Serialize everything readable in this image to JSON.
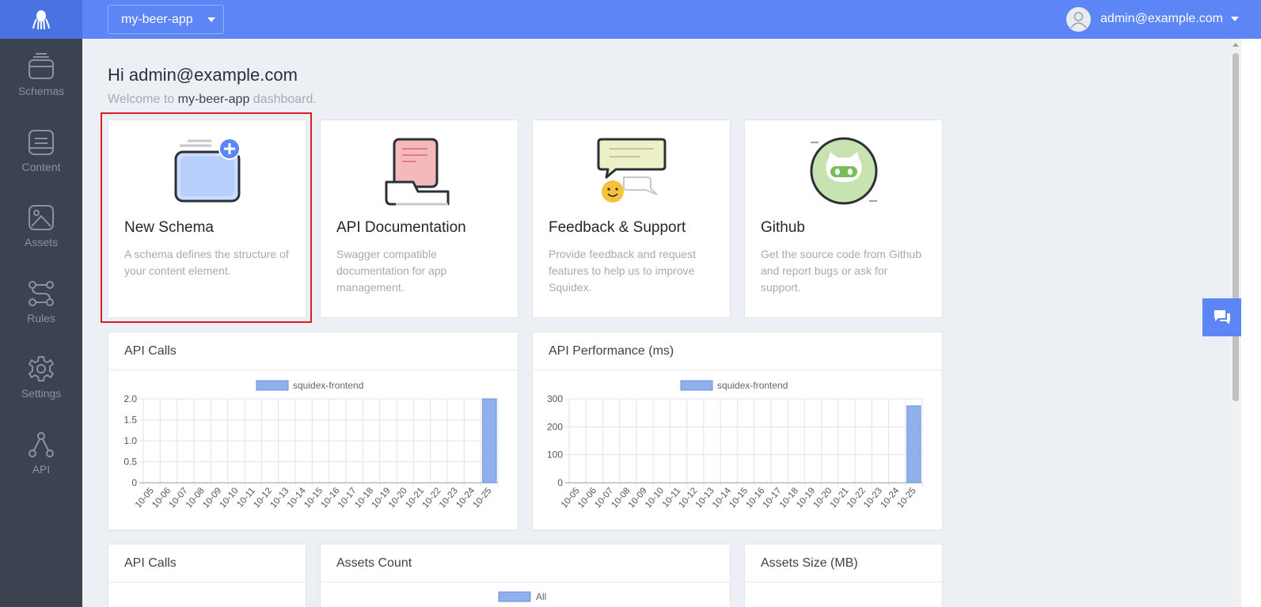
{
  "topbar": {
    "app_name": "my-beer-app",
    "user_email": "admin@example.com"
  },
  "sidebar": {
    "items": [
      {
        "label": "Schemas",
        "icon": "schemas-icon"
      },
      {
        "label": "Content",
        "icon": "content-icon"
      },
      {
        "label": "Assets",
        "icon": "assets-icon"
      },
      {
        "label": "Rules",
        "icon": "rules-icon"
      },
      {
        "label": "Settings",
        "icon": "settings-icon"
      },
      {
        "label": "API",
        "icon": "api-icon"
      }
    ]
  },
  "dashboard": {
    "greeting": "Hi admin@example.com",
    "welcome_prefix": "Welcome to",
    "welcome_app": "my-beer-app",
    "welcome_suffix": "dashboard.",
    "cards": [
      {
        "title": "New Schema",
        "text": "A schema defines the structure of your content element."
      },
      {
        "title": "API Documentation",
        "text": "Swagger compatible documentation for app management."
      },
      {
        "title": "Feedback & Support",
        "text": "Provide feedback and request features to help us to improve Squidex."
      },
      {
        "title": "Github",
        "text": "Get the source code from Github and report bugs or ask for support."
      }
    ],
    "bottom_titles": [
      "API Calls",
      "Assets Count",
      "Assets Size (MB)"
    ],
    "bottom_legend": "All"
  },
  "colors": {
    "accent": "#5c86f5",
    "sidebar": "#3b4350",
    "bar": "#8fb0eb",
    "highlight": "#d81f26"
  },
  "chart_data": [
    {
      "type": "bar",
      "title": "API Calls",
      "legend": "squidex-frontend",
      "categories": [
        "10-05",
        "10-06",
        "10-07",
        "10-08",
        "10-09",
        "10-10",
        "10-11",
        "10-12",
        "10-13",
        "10-14",
        "10-15",
        "10-16",
        "10-17",
        "10-18",
        "10-19",
        "10-20",
        "10-21",
        "10-22",
        "10-23",
        "10-24",
        "10-25"
      ],
      "values": [
        0,
        0,
        0,
        0,
        0,
        0,
        0,
        0,
        0,
        0,
        0,
        0,
        0,
        0,
        0,
        0,
        0,
        0,
        0,
        0,
        2
      ],
      "yticks": [
        0,
        0.5,
        1.0,
        1.5,
        2.0
      ],
      "ytick_labels": [
        "0",
        "0.5",
        "1.0",
        "1.5",
        "2.0"
      ],
      "ylim": [
        0,
        2
      ]
    },
    {
      "type": "bar",
      "title": "API Performance (ms)",
      "legend": "squidex-frontend",
      "categories": [
        "10-05",
        "10-06",
        "10-07",
        "10-08",
        "10-09",
        "10-10",
        "10-11",
        "10-12",
        "10-13",
        "10-14",
        "10-15",
        "10-16",
        "10-17",
        "10-18",
        "10-19",
        "10-20",
        "10-21",
        "10-22",
        "10-23",
        "10-24",
        "10-25"
      ],
      "values": [
        0,
        0,
        0,
        0,
        0,
        0,
        0,
        0,
        0,
        0,
        0,
        0,
        0,
        0,
        0,
        0,
        0,
        0,
        0,
        0,
        275
      ],
      "yticks": [
        0,
        100,
        200,
        300
      ],
      "ytick_labels": [
        "0",
        "100",
        "200",
        "300"
      ],
      "ylim": [
        0,
        300
      ]
    }
  ]
}
